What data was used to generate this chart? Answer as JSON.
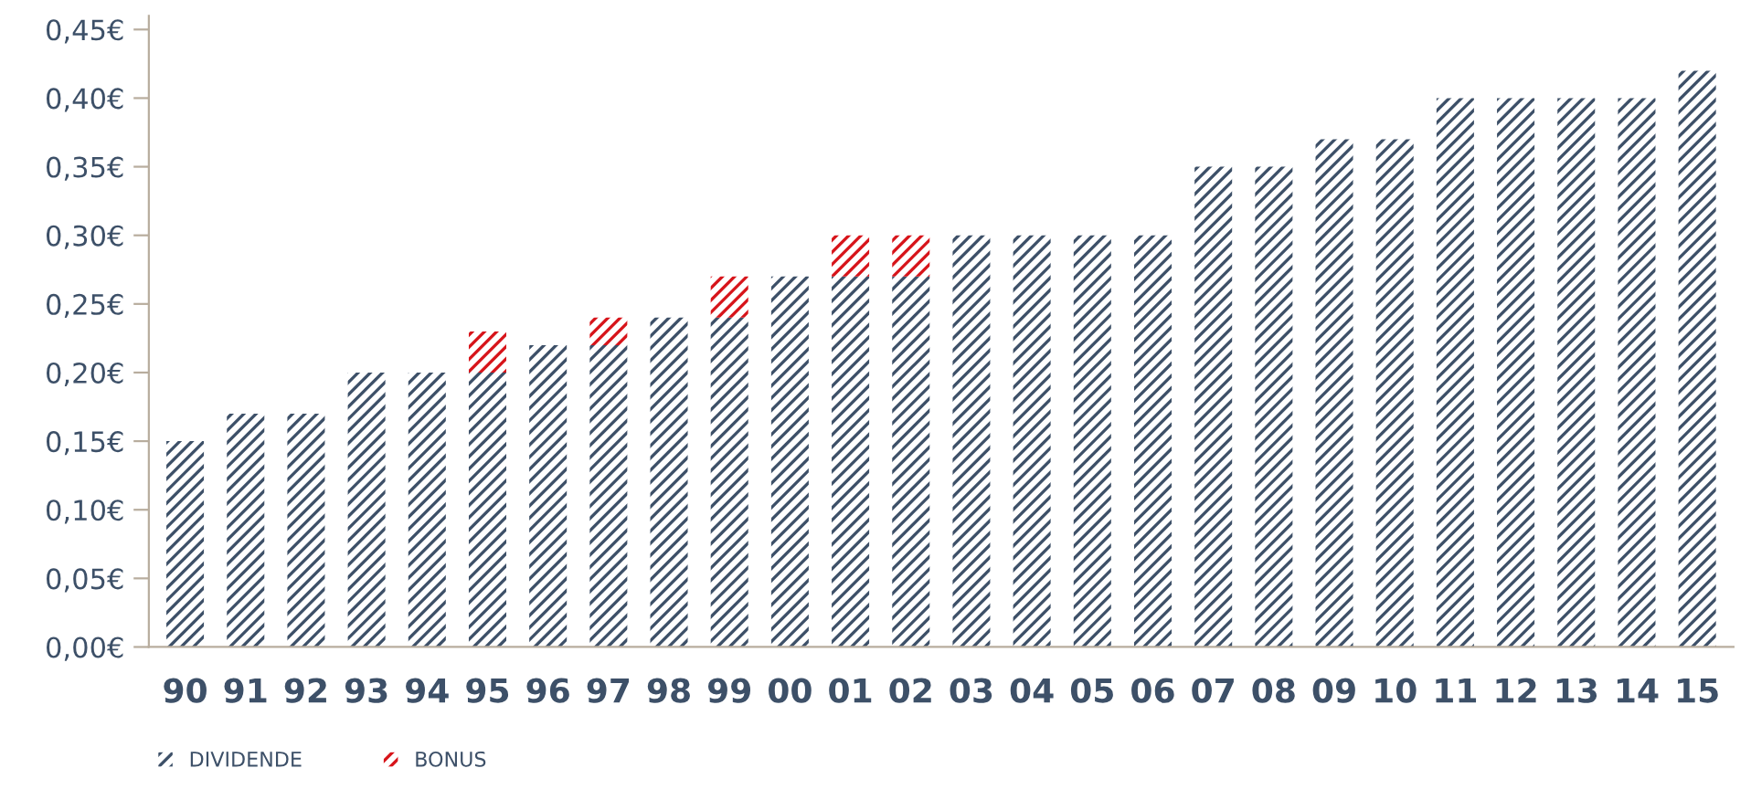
{
  "chart_data": {
    "type": "bar",
    "stacked": true,
    "categories": [
      "90",
      "91",
      "92",
      "93",
      "94",
      "95",
      "96",
      "97",
      "98",
      "99",
      "00",
      "01",
      "02",
      "03",
      "04",
      "05",
      "06",
      "07",
      "08",
      "09",
      "10",
      "11",
      "12",
      "13",
      "14",
      "15"
    ],
    "series": [
      {
        "name": "DIVIDENDE",
        "color": "#3d5068",
        "values": [
          0.15,
          0.17,
          0.17,
          0.2,
          0.2,
          0.2,
          0.22,
          0.22,
          0.24,
          0.24,
          0.27,
          0.27,
          0.27,
          0.3,
          0.3,
          0.3,
          0.3,
          0.35,
          0.35,
          0.37,
          0.37,
          0.4,
          0.4,
          0.4,
          0.4,
          0.42
        ]
      },
      {
        "name": "BONUS",
        "color": "#d7141a",
        "values": [
          null,
          null,
          null,
          null,
          null,
          0.03,
          null,
          0.02,
          null,
          0.03,
          null,
          0.03,
          0.03,
          null,
          null,
          null,
          null,
          null,
          null,
          null,
          null,
          null,
          null,
          null,
          null,
          null
        ]
      }
    ],
    "ylim": [
      0,
      0.46
    ],
    "yticks": [
      {
        "value": 0,
        "label": "0,00€"
      },
      {
        "value": 0.05,
        "label": "0,05€"
      },
      {
        "value": 0.1,
        "label": "0,10€"
      },
      {
        "value": 0.15,
        "label": "0,15€"
      },
      {
        "value": 0.2,
        "label": "0,20€"
      },
      {
        "value": 0.25,
        "label": "0,25€"
      },
      {
        "value": 0.3,
        "label": "0,30€"
      },
      {
        "value": 0.35,
        "label": "0,35€"
      },
      {
        "value": 0.4,
        "label": "0,40€"
      },
      {
        "value": 0.45,
        "label": "0,45€"
      }
    ],
    "grid": false,
    "legend": "bottom left"
  }
}
